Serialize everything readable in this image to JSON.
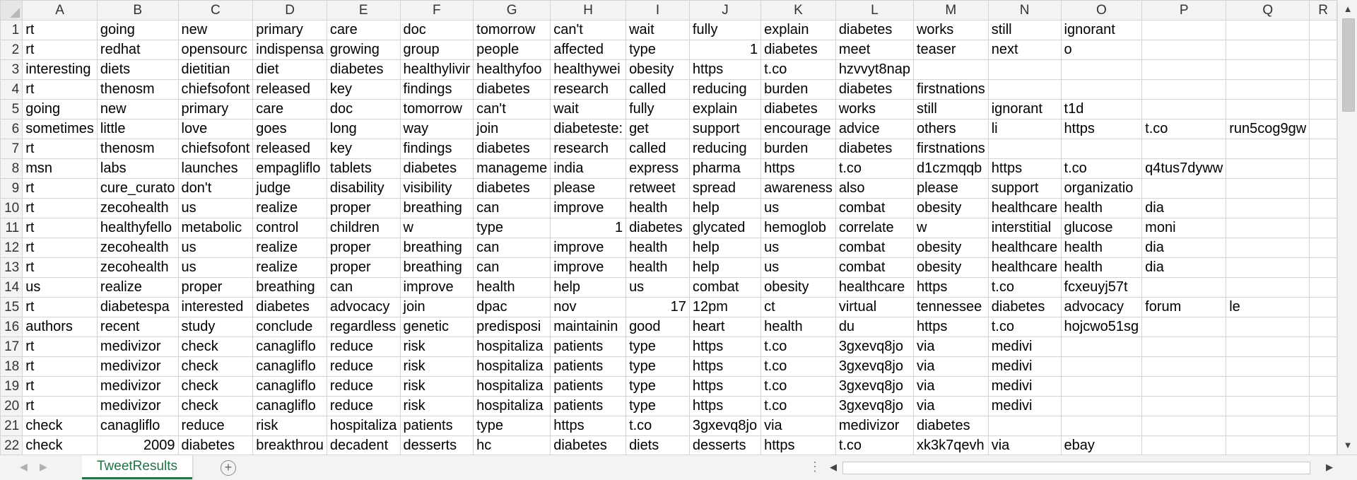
{
  "columns": [
    "A",
    "B",
    "C",
    "D",
    "E",
    "F",
    "G",
    "H",
    "I",
    "J",
    "K",
    "L",
    "M",
    "N",
    "O",
    "P",
    "Q",
    "R"
  ],
  "rows": [
    {
      "n": "1",
      "cells": [
        "rt",
        "going",
        "new",
        "primary",
        "care",
        "doc",
        "tomorrow",
        "can't",
        "wait",
        "fully",
        "explain",
        "diabetes",
        "works",
        "still",
        "ignorant",
        "",
        "",
        ""
      ]
    },
    {
      "n": "2",
      "cells": [
        "rt",
        "redhat",
        "opensourc",
        "indispensa",
        "growing",
        "group",
        "people",
        "affected",
        "type",
        "1",
        "diabetes",
        "meet",
        "teaser",
        "next",
        "o",
        "",
        "",
        ""
      ]
    },
    {
      "n": "3",
      "cells": [
        "interesting",
        "diets",
        "dietitian",
        "diet",
        "diabetes",
        "healthylivir",
        "healthyfoo",
        "healthywei",
        "obesity",
        "https",
        "t.co",
        "hzvvyt8nap",
        "",
        "",
        "",
        "",
        "",
        ""
      ]
    },
    {
      "n": "4",
      "cells": [
        "rt",
        "thenosm",
        "chiefsofont",
        "released",
        "key",
        "findings",
        "diabetes",
        "research",
        "called",
        "reducing",
        "burden",
        "diabetes",
        "firstnations",
        "",
        "",
        "",
        "",
        ""
      ]
    },
    {
      "n": "5",
      "cells": [
        "going",
        "new",
        "primary",
        "care",
        "doc",
        "tomorrow",
        "can't",
        "wait",
        "fully",
        "explain",
        "diabetes",
        "works",
        "still",
        "ignorant",
        "t1d",
        "",
        "",
        ""
      ]
    },
    {
      "n": "6",
      "cells": [
        "sometimes",
        "little",
        "love",
        "goes",
        "long",
        "way",
        "join",
        "diabeteste:",
        "get",
        "support",
        "encourage",
        "advice",
        "others",
        "li",
        "https",
        "t.co",
        "run5cog9gw",
        ""
      ]
    },
    {
      "n": "7",
      "cells": [
        "rt",
        "thenosm",
        "chiefsofont",
        "released",
        "key",
        "findings",
        "diabetes",
        "research",
        "called",
        "reducing",
        "burden",
        "diabetes",
        "firstnations",
        "",
        "",
        "",
        "",
        ""
      ]
    },
    {
      "n": "8",
      "cells": [
        "msn",
        "labs",
        "launches",
        "empagliflo",
        "tablets",
        "diabetes",
        "manageme",
        "india",
        "express",
        "pharma",
        "https",
        "t.co",
        "d1czmqqb",
        "https",
        "t.co",
        "q4tus7dyww",
        "",
        ""
      ]
    },
    {
      "n": "9",
      "cells": [
        "rt",
        "cure_curato",
        "don't",
        "judge",
        "disability",
        "visibility",
        "diabetes",
        "please",
        "retweet",
        "spread",
        "awareness",
        "also",
        "please",
        "support",
        "organizatio",
        "",
        "",
        ""
      ]
    },
    {
      "n": "10",
      "cells": [
        "rt",
        "zecohealth",
        "us",
        "realize",
        "proper",
        "breathing",
        "can",
        "improve",
        "health",
        "help",
        "us",
        "combat",
        "obesity",
        "healthcare",
        "health",
        "dia",
        "",
        ""
      ]
    },
    {
      "n": "11",
      "cells": [
        "rt",
        "healthyfello",
        "metabolic",
        "control",
        "children",
        "w",
        "type",
        "1",
        "diabetes",
        "glycated",
        "hemoglob",
        "correlate",
        "w",
        "interstitial",
        "glucose",
        "moni",
        "",
        ""
      ]
    },
    {
      "n": "12",
      "cells": [
        "rt",
        "zecohealth",
        "us",
        "realize",
        "proper",
        "breathing",
        "can",
        "improve",
        "health",
        "help",
        "us",
        "combat",
        "obesity",
        "healthcare",
        "health",
        "dia",
        "",
        ""
      ]
    },
    {
      "n": "13",
      "cells": [
        "rt",
        "zecohealth",
        "us",
        "realize",
        "proper",
        "breathing",
        "can",
        "improve",
        "health",
        "help",
        "us",
        "combat",
        "obesity",
        "healthcare",
        "health",
        "dia",
        "",
        ""
      ]
    },
    {
      "n": "14",
      "cells": [
        "us",
        "realize",
        "proper",
        "breathing",
        "can",
        "improve",
        "health",
        "help",
        "us",
        "combat",
        "obesity",
        "healthcare",
        "https",
        "t.co",
        "fcxeuyj57t",
        "",
        "",
        ""
      ]
    },
    {
      "n": "15",
      "cells": [
        "rt",
        "diabetespa",
        "interested",
        "diabetes",
        "advocacy",
        "join",
        "dpac",
        "nov",
        "17",
        "12pm",
        "ct",
        "virtual",
        "tennessee",
        "diabetes",
        "advocacy",
        "forum",
        "le",
        ""
      ]
    },
    {
      "n": "16",
      "cells": [
        "authors",
        "recent",
        "study",
        "conclude",
        "regardless",
        "genetic",
        "predisposi",
        "maintainin",
        "good",
        "heart",
        "health",
        "du",
        "https",
        "t.co",
        "hojcwo51sg",
        "",
        "",
        ""
      ]
    },
    {
      "n": "17",
      "cells": [
        "rt",
        "medivizor",
        "check",
        "canagliflo",
        "reduce",
        "risk",
        "hospitaliza",
        "patients",
        "type",
        "https",
        "t.co",
        "3gxevq8jo",
        "via",
        "medivi",
        "",
        "",
        "",
        ""
      ]
    },
    {
      "n": "18",
      "cells": [
        "rt",
        "medivizor",
        "check",
        "canagliflo",
        "reduce",
        "risk",
        "hospitaliza",
        "patients",
        "type",
        "https",
        "t.co",
        "3gxevq8jo",
        "via",
        "medivi",
        "",
        "",
        "",
        ""
      ]
    },
    {
      "n": "19",
      "cells": [
        "rt",
        "medivizor",
        "check",
        "canagliflo",
        "reduce",
        "risk",
        "hospitaliza",
        "patients",
        "type",
        "https",
        "t.co",
        "3gxevq8jo",
        "via",
        "medivi",
        "",
        "",
        "",
        ""
      ]
    },
    {
      "n": "20",
      "cells": [
        "rt",
        "medivizor",
        "check",
        "canagliflo",
        "reduce",
        "risk",
        "hospitaliza",
        "patients",
        "type",
        "https",
        "t.co",
        "3gxevq8jo",
        "via",
        "medivi",
        "",
        "",
        "",
        ""
      ]
    },
    {
      "n": "21",
      "cells": [
        "check",
        "canagliflo",
        "reduce",
        "risk",
        "hospitaliza",
        "patients",
        "type",
        "https",
        "t.co",
        "3gxevq8jo",
        "via",
        "medivizor",
        "diabetes",
        "",
        "",
        "",
        "",
        ""
      ]
    },
    {
      "n": "22",
      "cells": [
        "check",
        "2009",
        "diabetes",
        "breakthrou",
        "decadent",
        "desserts",
        "hc",
        "diabetes",
        "diets",
        "desserts",
        "https",
        "t.co",
        "xk3k7qevh",
        "via",
        "ebay",
        "",
        "",
        ""
      ]
    }
  ],
  "numeric_cells": [
    "2-J",
    "11-H",
    "15-I",
    "22-B"
  ],
  "sheet_tab": {
    "label": "TweetResults",
    "color": "#217346"
  }
}
